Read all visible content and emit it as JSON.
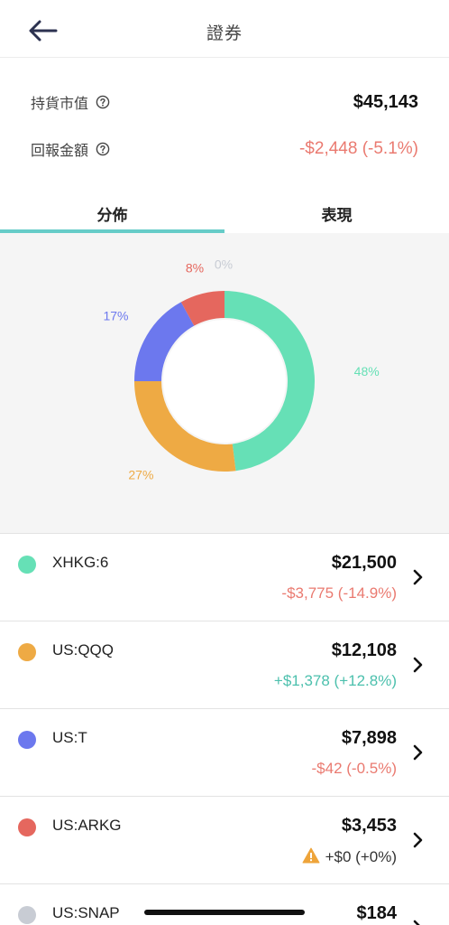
{
  "header": {
    "title": "證券",
    "back_icon": "arrow-left-icon"
  },
  "summary": {
    "holding_label": "持貨市值",
    "holding_value": "$45,143",
    "return_label": "回報金額",
    "return_value": "-$2,448 (-5.1%)",
    "info_icon": "info-circle-icon"
  },
  "tabs": [
    {
      "label": "分佈",
      "active": true
    },
    {
      "label": "表現",
      "active": false
    }
  ],
  "chart_data": {
    "type": "pie",
    "categories": [
      "XHKG:6",
      "US:QQQ",
      "US:T",
      "US:ARKG",
      "US:SNAP"
    ],
    "values": [
      48,
      27,
      17,
      8,
      0
    ],
    "labels": [
      "48%",
      "27%",
      "17%",
      "8%",
      "0%"
    ],
    "colors": [
      "#66e0b6",
      "#eeaa44",
      "#6c78ee",
      "#e5675e",
      "#c8ccd4"
    ],
    "style": "donut"
  },
  "holdings": [
    {
      "symbol": "XHKG:6",
      "amount": "$21,500",
      "change": "-$3,775 (-14.9%)",
      "trend": "neg",
      "color": "#66e0b6",
      "warning": false
    },
    {
      "symbol": "US:QQQ",
      "amount": "$12,108",
      "change": "+$1,378 (+12.8%)",
      "trend": "pos",
      "color": "#eeaa44",
      "warning": false
    },
    {
      "symbol": "US:T",
      "amount": "$7,898",
      "change": "-$42 (-0.5%)",
      "trend": "neg",
      "color": "#6c78ee",
      "warning": false
    },
    {
      "symbol": "US:ARKG",
      "amount": "$3,453",
      "change": "+$0 (+0%)",
      "trend": "neu",
      "color": "#e5675e",
      "warning": true
    },
    {
      "symbol": "US:SNAP",
      "amount": "$184",
      "change": "",
      "trend": "neg",
      "color": "#c8ccd4",
      "warning": false
    }
  ]
}
